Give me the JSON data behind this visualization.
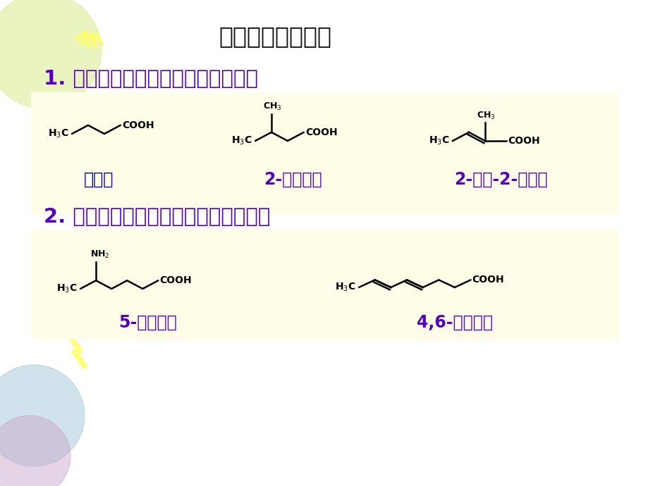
{
  "title": "（二）羧酸的命名",
  "title_color": "#111111",
  "title_fontsize": 24,
  "rule1_text": "1. 选含羧基最长碳链为母体，叫某酸",
  "rule2_text": "2. 主链有取代基和其它官能团依次编号",
  "rule_color": "#5500BB",
  "rule_fontsize": 21,
  "name1": "正丁酸",
  "name2": "2-甲基丁酸",
  "name3": "2-甲基-2-丁烯酸",
  "name4": "5-氨基己酸",
  "name5": "4,6-辛二烯酸",
  "name1_color": "#0000CC",
  "name_color_purple": "#5500BB",
  "box_bg": "#FFFCE8",
  "slide_bg": "#FFFFFF",
  "deco_green_color": "#DDEE99",
  "deco_blue_color": "#AACCDD",
  "deco_purple_color": "#CCAACC",
  "deco_yellow_color": "#FFFF66"
}
